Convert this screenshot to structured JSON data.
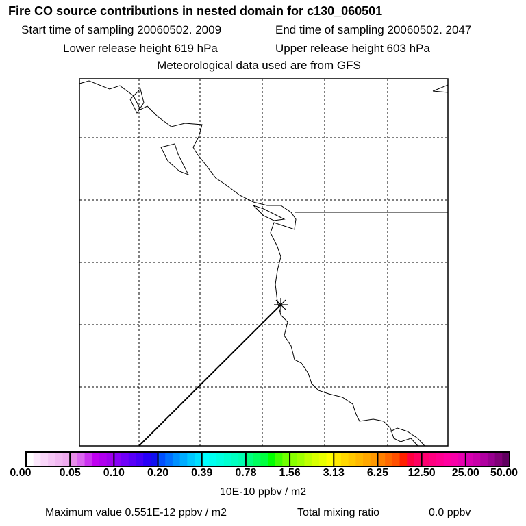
{
  "title": "Fire CO source contributions in nested domain for c130_060501",
  "start": "Start time of sampling 20060502.  2009",
  "end": "End time of sampling 20060502.  2047",
  "lower": "Lower release height  619 hPa",
  "upper": "Upper release height  603 hPa",
  "met": "Meteorological data used are from GFS",
  "chart_data": {
    "type": "map",
    "colorbar": {
      "ticks": [
        "0.00",
        "0.05",
        "0.10",
        "0.20",
        "0.39",
        "0.78",
        "1.56",
        "3.13",
        "6.25",
        "12.50",
        "25.00",
        "50.00"
      ],
      "units": "10E-10 ppbv / m2",
      "colors": [
        [
          "#ffffff",
          "#fce8fc",
          "#f9d6f9",
          "#f5c6f5",
          "#f1b8f1",
          "#eeaaee"
        ],
        [
          "#e88ce8",
          "#dc66f0",
          "#cc33f0",
          "#c000f0",
          "#b000ee",
          "#a000ee"
        ],
        [
          "#8800f8",
          "#7000f8",
          "#5800f8",
          "#4400f8",
          "#2800f8",
          "#1010f0"
        ],
        [
          "#0050ff",
          "#0070ff",
          "#0090ff",
          "#00acff",
          "#00c8ff",
          "#00e0ff"
        ],
        [
          "#00ffff",
          "#00fff0",
          "#00ffe0",
          "#00ffd0",
          "#00ffc0",
          "#00ffb0"
        ],
        [
          "#00ff80",
          "#00ff60",
          "#00ff40",
          "#00ff00",
          "#40ff00",
          "#70ff00"
        ],
        [
          "#88ff00",
          "#a0ff00",
          "#c0ff00",
          "#d8ff00",
          "#e8ff00",
          "#ffff00"
        ],
        [
          "#ffe800",
          "#ffd800",
          "#ffc800",
          "#ffb800",
          "#ffa800",
          "#ff9800"
        ],
        [
          "#ff8000",
          "#ff6800",
          "#ff5000",
          "#ff2000",
          "#ff0040",
          "#ff0060"
        ],
        [
          "#ff0070",
          "#ff0080",
          "#ff0090",
          "#ff00a0",
          "#f800a8",
          "#e800b0"
        ],
        [
          "#d800b0",
          "#c800a8",
          "#b000a0",
          "#980090",
          "#800078",
          "#600060"
        ]
      ]
    },
    "source_marker": "star",
    "trajectory": "straight line from star southwest to bottom edge"
  },
  "footer": {
    "max": "Maximum value  0.551E-12 ppbv / m2",
    "total_label": "Total mixing ratio",
    "total_value": "0.0 ppbv"
  }
}
